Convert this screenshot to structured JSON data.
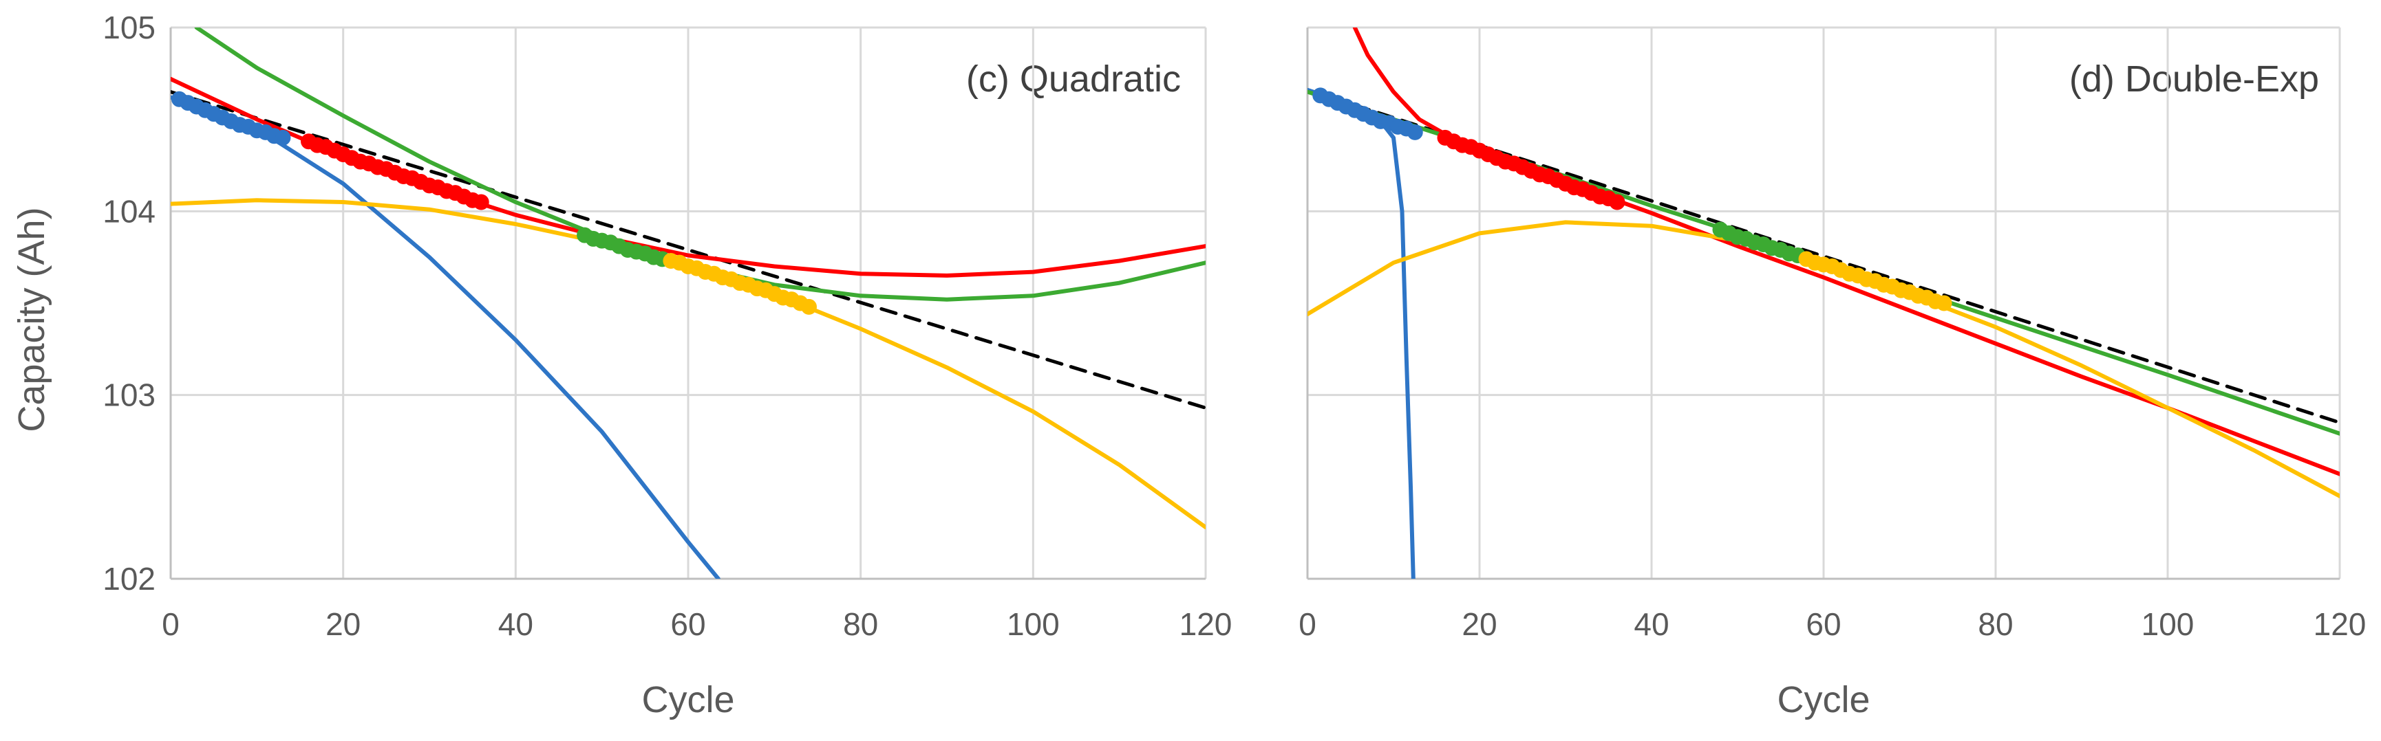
{
  "colors": {
    "blue": "#2E75C6",
    "red": "#FF0000",
    "green": "#3CAA32",
    "yellow": "#FFC000",
    "dash": "#000000",
    "grid": "#D9D9D9",
    "axis": "#BFBFBF"
  },
  "chart_data": [
    {
      "type": "line",
      "title": "(c) Quadratic",
      "xlabel": "Cycle",
      "ylabel": "Capacity (Ah)",
      "xlim": [
        0,
        120
      ],
      "ylim": [
        102,
        105
      ],
      "xticks": [
        "0",
        "20",
        "40",
        "60",
        "80",
        "100",
        "120"
      ],
      "yticks": [
        "102",
        "103",
        "104",
        "105"
      ],
      "grid": true,
      "series": [
        {
          "name": "blue-data",
          "kind": "scatter",
          "color": "blue",
          "x": [
            1,
            2,
            3,
            4,
            5,
            6,
            7,
            8,
            9,
            10,
            11,
            12,
            13
          ],
          "y": [
            104.61,
            104.59,
            104.57,
            104.55,
            104.53,
            104.51,
            104.49,
            104.47,
            104.46,
            104.44,
            104.43,
            104.41,
            104.4
          ]
        },
        {
          "name": "red-data",
          "kind": "scatter",
          "color": "red",
          "x": [
            16,
            17,
            18,
            19,
            20,
            21,
            22,
            23,
            24,
            25,
            26,
            27,
            28,
            29,
            30,
            31,
            32,
            33,
            34,
            35,
            36
          ],
          "y": [
            104.38,
            104.36,
            104.35,
            104.33,
            104.31,
            104.29,
            104.27,
            104.26,
            104.24,
            104.23,
            104.21,
            104.19,
            104.18,
            104.16,
            104.14,
            104.13,
            104.11,
            104.1,
            104.08,
            104.06,
            104.05
          ]
        },
        {
          "name": "green-data",
          "kind": "scatter",
          "color": "green",
          "x": [
            48,
            49,
            50,
            51,
            52,
            53,
            54,
            55,
            56,
            57
          ],
          "y": [
            103.87,
            103.85,
            103.84,
            103.83,
            103.81,
            103.79,
            103.78,
            103.77,
            103.75,
            103.74
          ]
        },
        {
          "name": "yellow-data",
          "kind": "scatter",
          "color": "yellow",
          "x": [
            58,
            59,
            60,
            61,
            62,
            63,
            64,
            65,
            66,
            67,
            68,
            69,
            70,
            71,
            72,
            73,
            74
          ],
          "y": [
            103.73,
            103.72,
            103.7,
            103.69,
            103.67,
            103.66,
            103.64,
            103.63,
            103.61,
            103.6,
            103.58,
            103.57,
            103.55,
            103.53,
            103.52,
            103.5,
            103.48
          ]
        },
        {
          "name": "trend-dashed",
          "kind": "line",
          "color": "dash",
          "dashed": true,
          "x": [
            0,
            120
          ],
          "y": [
            104.65,
            102.93
          ]
        },
        {
          "name": "blue-fit",
          "kind": "line",
          "color": "blue",
          "x": [
            0,
            10,
            20,
            30,
            40,
            50,
            60,
            63.5
          ],
          "y": [
            104.62,
            104.45,
            104.15,
            103.75,
            103.3,
            102.8,
            102.2,
            102.0
          ]
        },
        {
          "name": "red-fit",
          "kind": "line",
          "color": "red",
          "x": [
            0,
            10,
            20,
            30,
            40,
            50,
            60,
            70,
            80,
            90,
            100,
            110,
            120
          ],
          "y": [
            104.72,
            104.5,
            104.3,
            104.13,
            103.98,
            103.86,
            103.76,
            103.7,
            103.66,
            103.65,
            103.67,
            103.73,
            103.81
          ]
        },
        {
          "name": "green-fit",
          "kind": "line",
          "color": "green",
          "x": [
            3,
            10,
            20,
            30,
            40,
            50,
            60,
            70,
            80,
            90,
            100,
            110,
            120
          ],
          "y": [
            105.0,
            104.78,
            104.52,
            104.27,
            104.05,
            103.86,
            103.71,
            103.6,
            103.54,
            103.52,
            103.54,
            103.61,
            103.72
          ]
        },
        {
          "name": "yellow-fit",
          "kind": "line",
          "color": "yellow",
          "x": [
            0,
            10,
            20,
            30,
            40,
            50,
            60,
            70,
            80,
            90,
            100,
            110,
            120
          ],
          "y": [
            104.04,
            104.06,
            104.05,
            104.01,
            103.93,
            103.83,
            103.7,
            103.55,
            103.36,
            103.15,
            102.91,
            102.62,
            102.28
          ]
        }
      ]
    },
    {
      "type": "line",
      "title": "(d) Double-Exp",
      "xlabel": "Cycle",
      "ylabel": "",
      "xlim": [
        0,
        120
      ],
      "ylim": [
        102,
        105
      ],
      "xticks": [
        "0",
        "20",
        "40",
        "60",
        "80",
        "100",
        "120"
      ],
      "yticks": [],
      "grid": true,
      "series": [
        {
          "name": "blue-data",
          "kind": "scatter",
          "color": "blue",
          "x": [
            1.5,
            2.5,
            3.5,
            4.5,
            5.5,
            6.5,
            7.5,
            8.5,
            9.5,
            10.5,
            11.5,
            12.5
          ],
          "y": [
            104.63,
            104.61,
            104.59,
            104.57,
            104.55,
            104.53,
            104.51,
            104.49,
            104.48,
            104.46,
            104.45,
            104.43
          ]
        },
        {
          "name": "red-data",
          "kind": "scatter",
          "color": "red",
          "x": [
            16,
            17,
            18,
            19,
            20,
            21,
            22,
            23,
            24,
            25,
            26,
            27,
            28,
            29,
            30,
            31,
            32,
            33,
            34,
            35,
            36
          ],
          "y": [
            104.4,
            104.38,
            104.36,
            104.35,
            104.33,
            104.31,
            104.29,
            104.27,
            104.26,
            104.24,
            104.22,
            104.2,
            104.19,
            104.17,
            104.15,
            104.13,
            104.12,
            104.1,
            104.08,
            104.07,
            104.05
          ]
        },
        {
          "name": "green-data",
          "kind": "scatter",
          "color": "green",
          "x": [
            48,
            49,
            50,
            51,
            52,
            53,
            54,
            55,
            56,
            57
          ],
          "y": [
            103.9,
            103.88,
            103.86,
            103.85,
            103.83,
            103.82,
            103.8,
            103.79,
            103.77,
            103.76
          ]
        },
        {
          "name": "yellow-data",
          "kind": "scatter",
          "color": "yellow",
          "x": [
            58,
            59,
            60,
            61,
            62,
            63,
            64,
            65,
            66,
            67,
            68,
            69,
            70,
            71,
            72,
            73,
            74
          ],
          "y": [
            103.74,
            103.72,
            103.71,
            103.7,
            103.68,
            103.66,
            103.65,
            103.63,
            103.62,
            103.6,
            103.59,
            103.57,
            103.56,
            103.54,
            103.53,
            103.51,
            103.5
          ]
        },
        {
          "name": "trend-dashed",
          "kind": "line",
          "color": "dash",
          "dashed": true,
          "x": [
            0,
            120
          ],
          "y": [
            104.66,
            102.85
          ]
        },
        {
          "name": "blue-fit",
          "kind": "line",
          "color": "blue",
          "x": [
            0,
            4,
            8,
            10,
            11,
            11.5,
            12,
            12.3
          ],
          "y": [
            104.66,
            104.6,
            104.52,
            104.4,
            104.0,
            103.2,
            102.5,
            102.0
          ]
        },
        {
          "name": "red-fit",
          "kind": "line",
          "color": "red",
          "x": [
            5.5,
            7,
            10,
            13,
            16,
            20,
            30,
            40,
            50,
            60,
            70,
            80,
            90,
            100,
            110,
            120
          ],
          "y": [
            105.0,
            104.85,
            104.65,
            104.5,
            104.42,
            104.34,
            104.16,
            103.99,
            103.81,
            103.64,
            103.46,
            103.28,
            103.1,
            102.93,
            102.75,
            102.57
          ]
        },
        {
          "name": "green-fit",
          "kind": "line",
          "color": "green",
          "x": [
            0,
            20,
            40,
            60,
            80,
            100,
            120
          ],
          "y": [
            104.65,
            104.35,
            104.03,
            103.73,
            103.42,
            103.11,
            102.79
          ]
        },
        {
          "name": "yellow-fit",
          "kind": "line",
          "color": "yellow",
          "x": [
            0,
            10,
            20,
            30,
            40,
            50,
            60,
            70,
            80,
            90,
            100,
            110,
            120
          ],
          "y": [
            103.44,
            103.72,
            103.88,
            103.94,
            103.92,
            103.84,
            103.71,
            103.55,
            103.37,
            103.16,
            102.93,
            102.7,
            102.45
          ]
        }
      ]
    }
  ]
}
